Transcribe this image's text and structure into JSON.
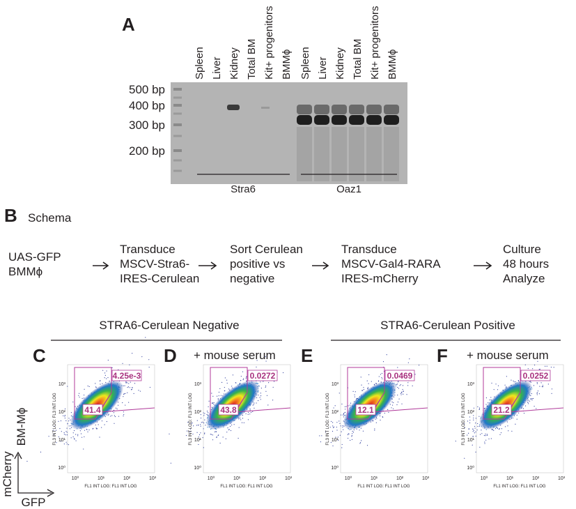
{
  "panel_a": {
    "label": "A",
    "lanes": [
      "Spleen",
      "Liver",
      "Kidney",
      "Total BM",
      "Kit+ progenitors",
      "BMMϕ",
      "Spleen",
      "Liver",
      "Kidney",
      "Total BM",
      "Kit+ progenitors",
      "BMMϕ"
    ],
    "ladder": [
      "500 bp",
      "400 bp",
      "300 bp",
      "200 bp"
    ],
    "groups": [
      "Stra6",
      "Oaz1"
    ]
  },
  "panel_b": {
    "label": "B",
    "title": "Schema",
    "steps": [
      [
        "UAS-GFP",
        "BMMϕ"
      ],
      [
        "Transduce",
        "MSCV-Stra6-",
        "IRES-Cerulean"
      ],
      [
        "Sort Cerulean",
        "positive vs",
        "negative"
      ],
      [
        "Transduce",
        "MSCV-Gal4-RARA",
        "IRES-mCherry"
      ],
      [
        "Culture",
        "48 hours",
        "Analyze"
      ]
    ]
  },
  "groups": [
    "STRA6-Cerulean Negative",
    "STRA6-Cerulean Positive"
  ],
  "flow": {
    "y_axis_label": "FL3 INT LOG: FL3 INT LOG",
    "x_axis_label": "FL1 INT LOG: FL1 INT LOG",
    "ticks": [
      "10⁰",
      "10¹",
      "10²",
      "10³"
    ],
    "plots": [
      {
        "label": "C",
        "gates": [
          "41.4",
          "4.25e-3"
        ]
      },
      {
        "label": "D",
        "condition": "+ mouse serum",
        "gates": [
          "43.8",
          "0.0272"
        ]
      },
      {
        "label": "E",
        "gates": [
          "12.1",
          "0.0469"
        ]
      },
      {
        "label": "F",
        "condition": "+ mouse serum",
        "gates": [
          "21.2",
          "0.0252"
        ]
      }
    ]
  },
  "axis_key": {
    "cell": "BM-Mϕ",
    "y": "mCherry",
    "x": "GFP"
  }
}
